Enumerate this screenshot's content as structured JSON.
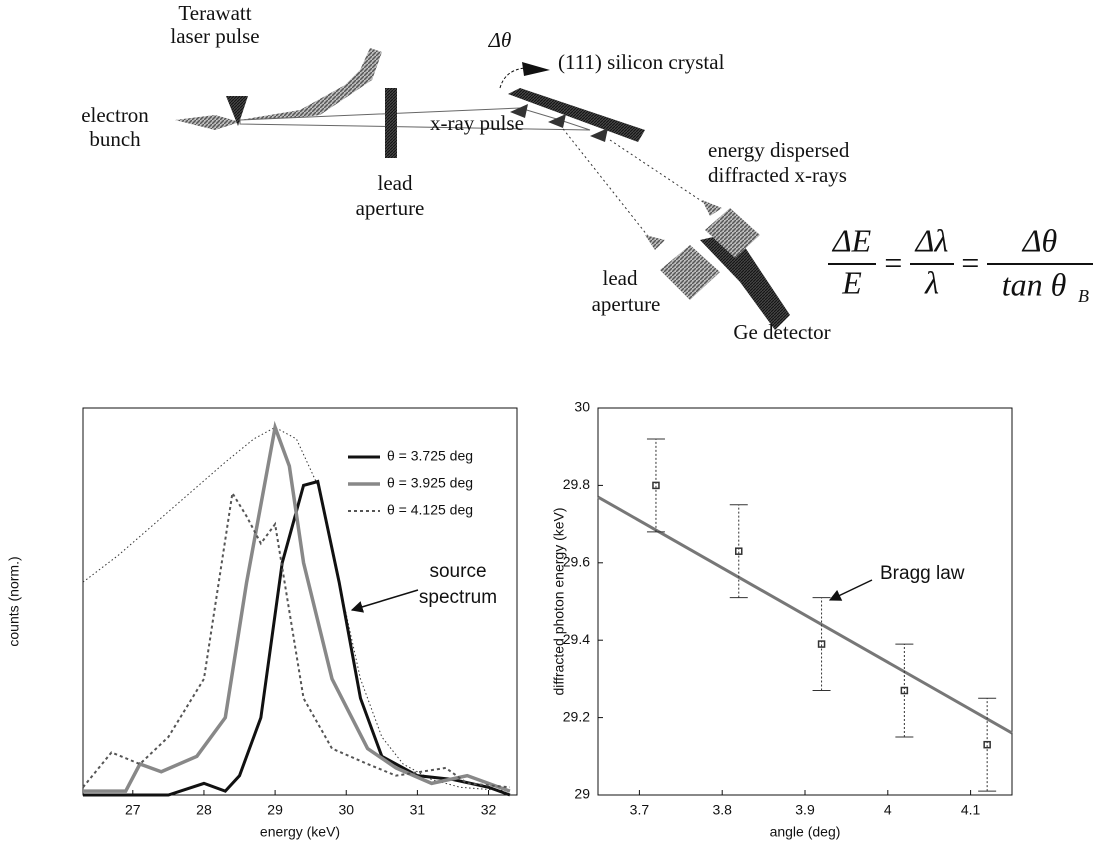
{
  "diagram": {
    "laser": [
      "Terawatt",
      "laser pulse"
    ],
    "electron": [
      "electron",
      "bunch"
    ],
    "delta_theta": "Δθ",
    "crystal": "(111) silicon crystal",
    "xray": "x-ray pulse",
    "lead1": [
      "lead",
      "aperture"
    ],
    "dispersed": [
      "energy dispersed",
      "diffracted x-rays"
    ],
    "lead2": [
      "lead",
      "aperture"
    ],
    "ge": "Ge detector",
    "equation": {
      "dE": "ΔE",
      "E": "E",
      "eq": "=",
      "dl": "Δλ",
      "l": "λ",
      "dt": "Δθ",
      "tan": "tan θ",
      "sub": "B"
    }
  },
  "chart_data": [
    {
      "type": "line",
      "xlabel": "energy (keV)",
      "ylabel": "counts (norm.)",
      "xlim": [
        26.3,
        32.4
      ],
      "ylim": [
        0,
        1
      ],
      "xticks": [
        27,
        28,
        29,
        30,
        31,
        32
      ],
      "annotation": [
        "source",
        "spectrum"
      ],
      "series": [
        {
          "color": "#333333",
          "style": "dotted",
          "x": [
            26.3,
            26.8,
            27.3,
            27.8,
            28.3,
            28.7,
            29.0,
            29.3,
            29.6,
            29.9,
            30.2,
            30.5,
            30.8,
            31.2,
            31.6,
            32.3
          ],
          "values": [
            0.55,
            0.62,
            0.7,
            0.78,
            0.86,
            0.92,
            0.95,
            0.92,
            0.8,
            0.55,
            0.3,
            0.15,
            0.08,
            0.04,
            0.02,
            0.01
          ]
        },
        {
          "name": "θ = 3.725 deg",
          "color": "#111111",
          "style": "solid",
          "x": [
            26.3,
            27.5,
            28.0,
            28.3,
            28.5,
            28.8,
            29.1,
            29.4,
            29.6,
            29.9,
            30.2,
            30.5,
            31.0,
            31.5,
            32.0,
            32.3
          ],
          "values": [
            0,
            0,
            0.03,
            0.01,
            0.05,
            0.2,
            0.6,
            0.8,
            0.81,
            0.55,
            0.25,
            0.1,
            0.05,
            0.04,
            0.02,
            0
          ]
        },
        {
          "name": "θ = 3.925 deg",
          "color": "#888888",
          "style": "thick",
          "x": [
            26.3,
            26.9,
            27.1,
            27.4,
            27.9,
            28.3,
            28.6,
            29.0,
            29.2,
            29.4,
            29.8,
            30.3,
            30.7,
            31.2,
            31.7,
            32.3
          ],
          "values": [
            0.01,
            0.01,
            0.08,
            0.06,
            0.1,
            0.2,
            0.55,
            0.95,
            0.85,
            0.6,
            0.3,
            0.12,
            0.07,
            0.03,
            0.05,
            0.01
          ]
        },
        {
          "name": "θ = 4.125 deg",
          "color": "#555555",
          "style": "dashed",
          "x": [
            26.3,
            26.7,
            27.1,
            27.5,
            28.0,
            28.4,
            28.6,
            28.8,
            29.0,
            29.4,
            29.8,
            30.3,
            30.7,
            31.4,
            31.7,
            32.3
          ],
          "values": [
            0.02,
            0.11,
            0.08,
            0.15,
            0.3,
            0.78,
            0.72,
            0.65,
            0.7,
            0.25,
            0.12,
            0.08,
            0.05,
            0.07,
            0.03,
            0.02
          ]
        }
      ]
    },
    {
      "type": "errorbar",
      "xlabel": "angle (deg)",
      "ylabel": "diffracted photon energy (keV)",
      "xlim": [
        3.65,
        4.15
      ],
      "ylim": [
        29,
        30
      ],
      "xticks": [
        3.7,
        3.8,
        3.9,
        4,
        4.1
      ],
      "yticks": [
        29,
        29.2,
        29.4,
        29.6,
        29.8,
        30
      ],
      "points": {
        "color": "#333333",
        "x": [
          3.72,
          3.82,
          3.92,
          4.02,
          4.12
        ],
        "values": [
          29.8,
          29.63,
          29.39,
          29.27,
          29.13
        ],
        "errors": [
          0.12,
          0.12,
          0.12,
          0.12,
          0.12
        ]
      },
      "fit": {
        "label": "Bragg law",
        "color": "#777777",
        "x": [
          3.65,
          4.15
        ],
        "values": [
          29.77,
          29.16
        ]
      }
    }
  ]
}
